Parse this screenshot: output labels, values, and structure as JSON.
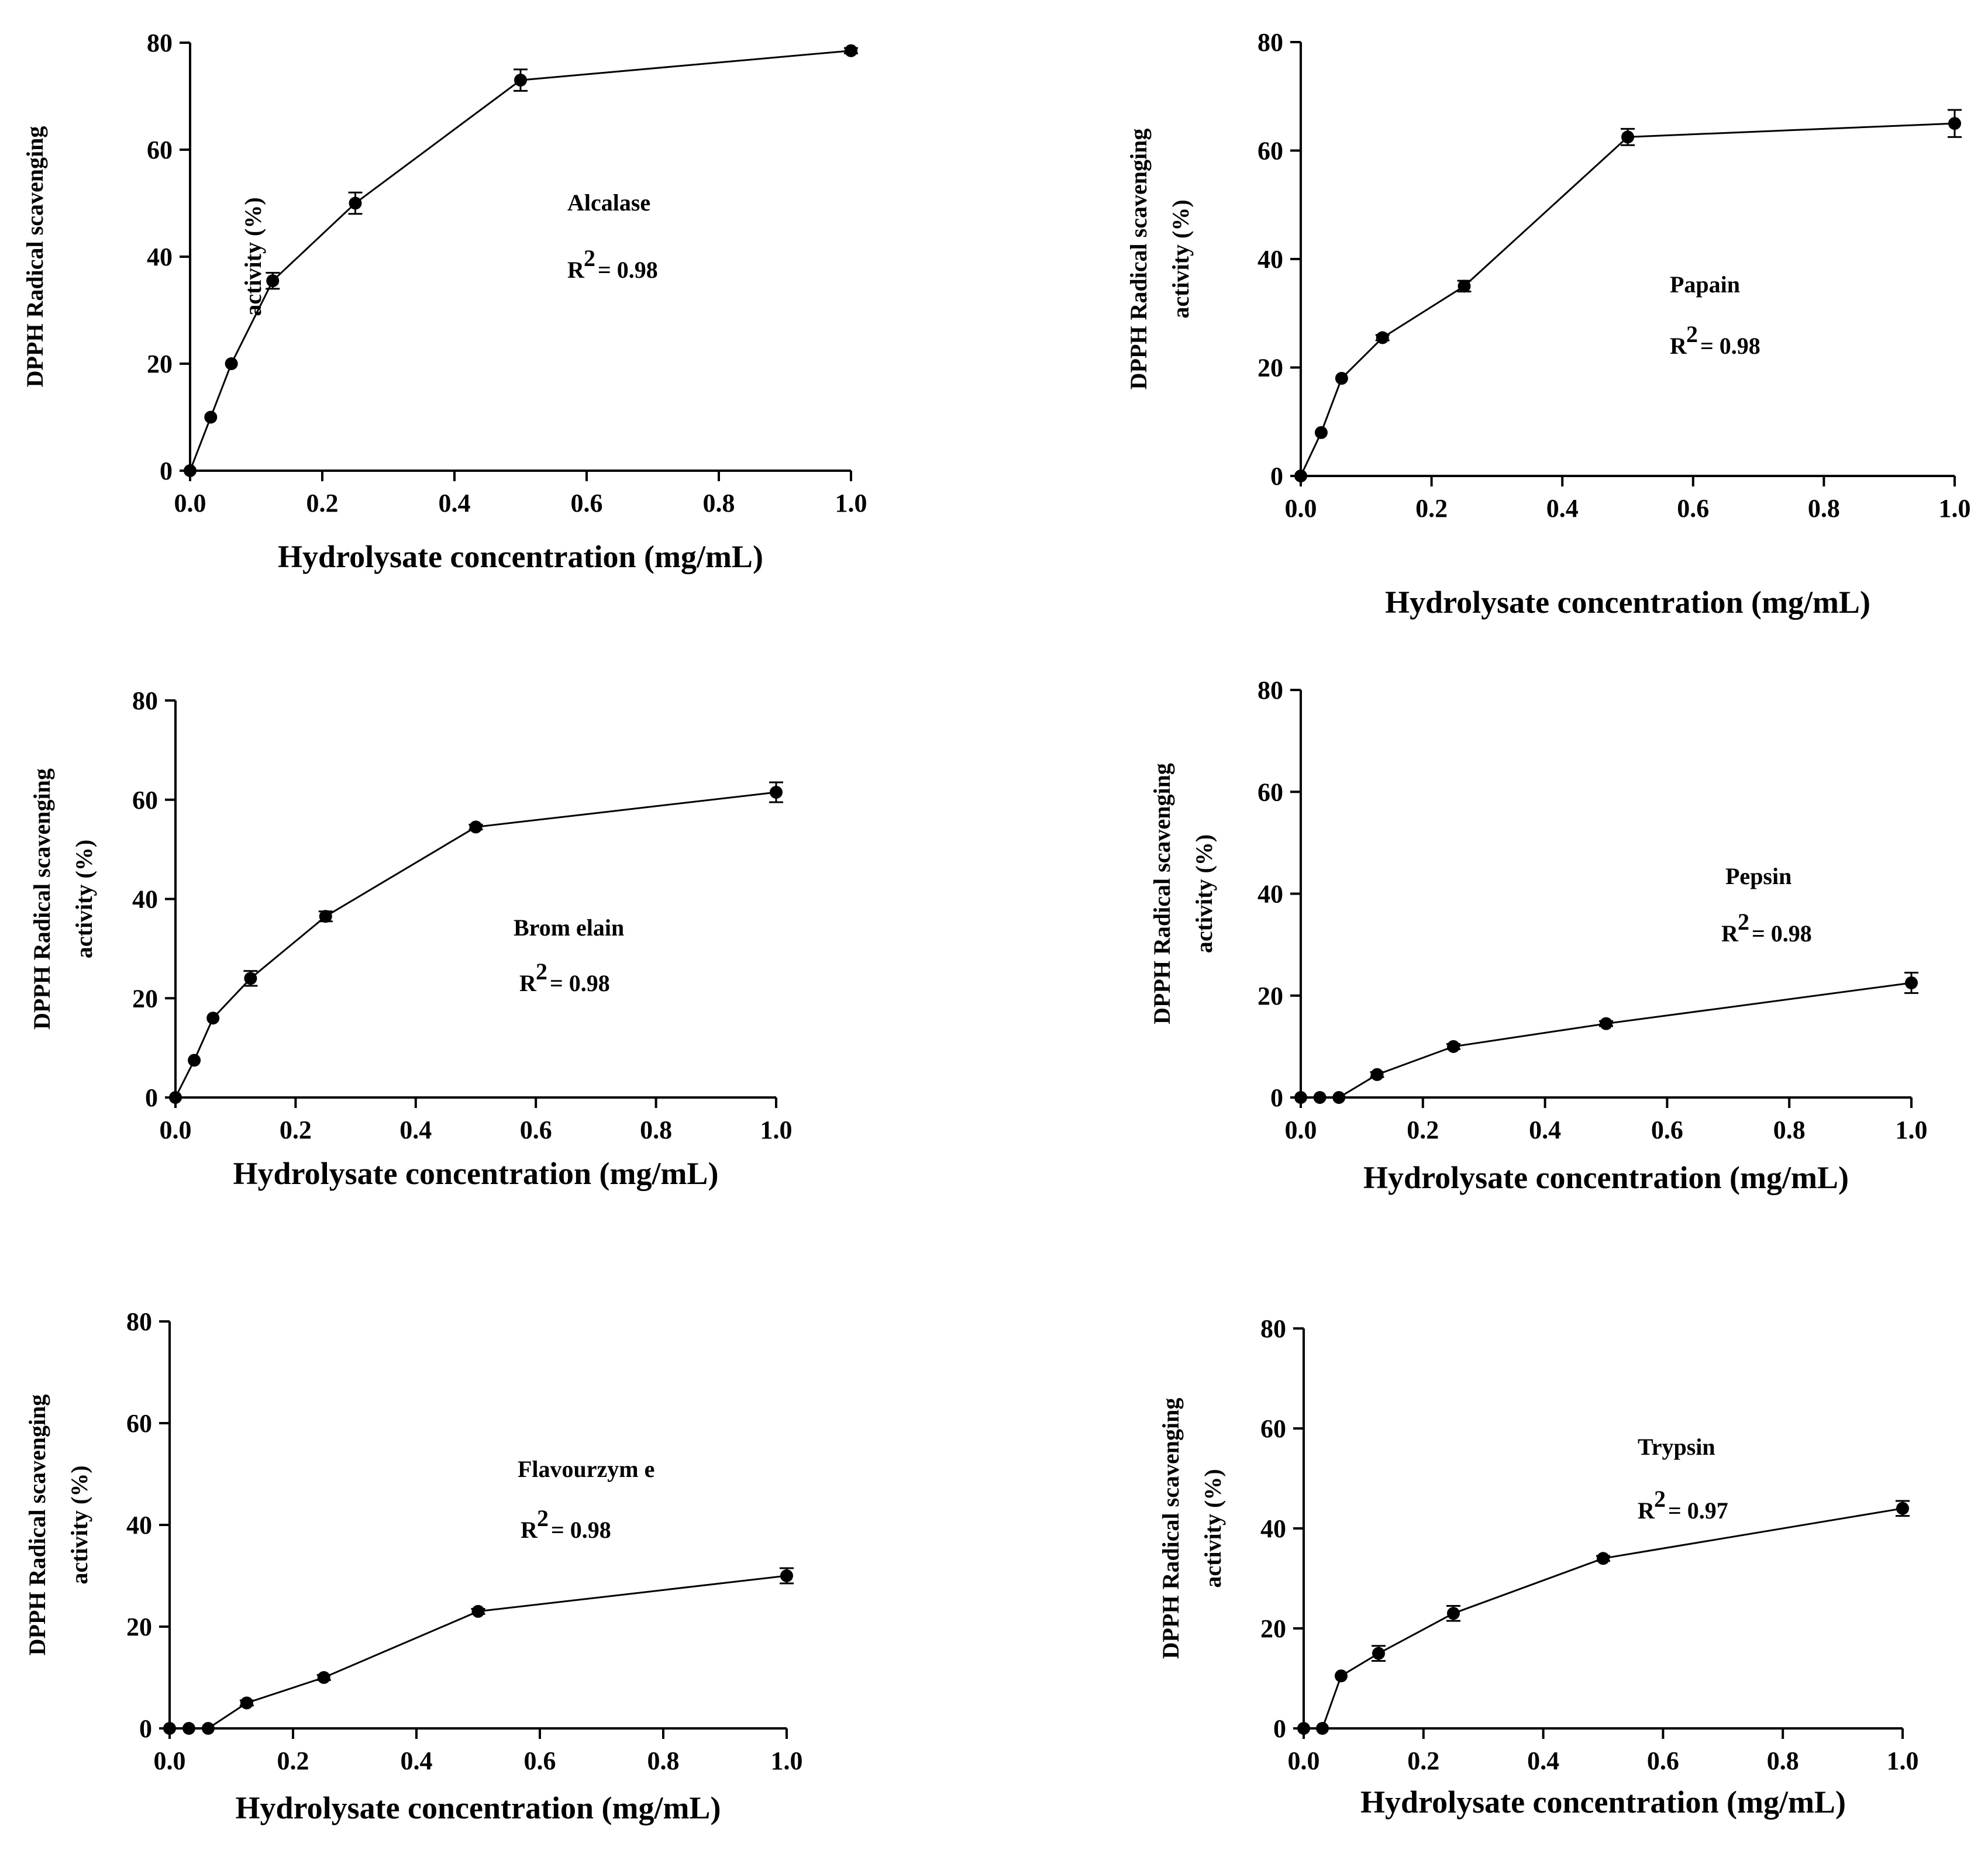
{
  "chart_data": [
    {
      "type": "line",
      "id": "alcalase",
      "title": "",
      "xlabel": "Hydrolysate concentration (mg/mL)",
      "ylabel_line1": "DPPH Radical scavenging",
      "ylabel_line2": "activity (%)",
      "xlim": [
        0,
        1.0
      ],
      "ylim": [
        0,
        80
      ],
      "x_ticks": [
        "0.0",
        "0.2",
        "0.4",
        "0.6",
        "0.8",
        "1.0"
      ],
      "y_ticks": [
        "0",
        "20",
        "40",
        "60",
        "80"
      ],
      "annotation_name": "Alcalase",
      "r2_label": "R",
      "r2_sup": "2",
      "r2_value": "= 0.98",
      "series": [
        {
          "name": "Alcalase",
          "x": [
            0,
            0.03125,
            0.0625,
            0.125,
            0.25,
            0.5,
            1.0
          ],
          "y": [
            0,
            10,
            20,
            35.5,
            50,
            73,
            78.5
          ],
          "err": [
            0,
            0,
            0,
            1.5,
            2,
            2,
            0.5
          ]
        }
      ]
    },
    {
      "type": "line",
      "id": "papain",
      "title": "",
      "xlabel": "Hydrolysate concentration (mg/mL)",
      "ylabel_line1": "DPPH Radical scavenging",
      "ylabel_line2": "activity (%)",
      "xlim": [
        0,
        1.0
      ],
      "ylim": [
        0,
        80
      ],
      "x_ticks": [
        "0.0",
        "0.2",
        "0.4",
        "0.6",
        "0.8",
        "1.0"
      ],
      "y_ticks": [
        "0",
        "20",
        "40",
        "60",
        "80"
      ],
      "annotation_name": "Papain",
      "r2_label": "R",
      "r2_sup": "2",
      "r2_value": "= 0.98",
      "series": [
        {
          "name": "Papain",
          "x": [
            0,
            0.03125,
            0.0625,
            0.125,
            0.25,
            0.5,
            1.0
          ],
          "y": [
            0,
            8,
            18,
            25.5,
            35,
            62.5,
            65
          ],
          "err": [
            0,
            0,
            0,
            0.5,
            1,
            1.5,
            2.5
          ]
        }
      ]
    },
    {
      "type": "line",
      "id": "bromelain",
      "title": "",
      "xlabel": "Hydrolysate concentration (mg/mL)",
      "ylabel_line1": "DPPH Radical scavenging",
      "ylabel_line2": "activity (%)",
      "xlim": [
        0,
        1.0
      ],
      "ylim": [
        0,
        80
      ],
      "x_ticks": [
        "0.0",
        "0.2",
        "0.4",
        "0.6",
        "0.8",
        "1.0"
      ],
      "y_ticks": [
        "0",
        "20",
        "40",
        "60",
        "80"
      ],
      "annotation_name": "Brom elain",
      "r2_label": "R",
      "r2_sup": "2",
      "r2_value": "= 0.98",
      "series": [
        {
          "name": "Bromelain",
          "x": [
            0,
            0.03125,
            0.0625,
            0.125,
            0.25,
            0.5,
            1.0
          ],
          "y": [
            0,
            7.5,
            16,
            24,
            36.5,
            54.5,
            61.5
          ],
          "err": [
            0,
            0,
            0,
            1.5,
            1,
            0.5,
            2
          ]
        }
      ]
    },
    {
      "type": "line",
      "id": "pepsin",
      "title": "",
      "xlabel": "Hydrolysate concentration (mg/mL)",
      "ylabel_line1": "DPPH Radical scavenging",
      "ylabel_line2": "activity (%)",
      "xlim": [
        0,
        1.0
      ],
      "ylim": [
        0,
        80
      ],
      "x_ticks": [
        "0.0",
        "0.2",
        "0.4",
        "0.6",
        "0.8",
        "1.0"
      ],
      "y_ticks": [
        "0",
        "20",
        "40",
        "60",
        "80"
      ],
      "annotation_name": "Pepsin",
      "r2_label": "R",
      "r2_sup": "2",
      "r2_value": "= 0.98",
      "series": [
        {
          "name": "Pepsin",
          "x": [
            0,
            0.03125,
            0.0625,
            0.125,
            0.25,
            0.5,
            1.0
          ],
          "y": [
            0,
            0,
            0,
            4.5,
            10,
            14.5,
            22.5
          ],
          "err": [
            0,
            0,
            0,
            0.5,
            0.5,
            0.5,
            2
          ]
        }
      ]
    },
    {
      "type": "line",
      "id": "flavourzyme",
      "title": "",
      "xlabel": "Hydrolysate concentration (mg/mL)",
      "ylabel_line1": "DPPH Radical scavenging",
      "ylabel_line2": "activity (%)",
      "xlim": [
        0,
        1.0
      ],
      "ylim": [
        0,
        80
      ],
      "x_ticks": [
        "0.0",
        "0.2",
        "0.4",
        "0.6",
        "0.8",
        "1.0"
      ],
      "y_ticks": [
        "0",
        "20",
        "40",
        "60",
        "80"
      ],
      "annotation_name": "Flavourzym e",
      "r2_label": "R",
      "r2_sup": "2",
      "r2_value": "= 0.98",
      "series": [
        {
          "name": "Flavourzyme",
          "x": [
            0,
            0.03125,
            0.0625,
            0.125,
            0.25,
            0.5,
            1.0
          ],
          "y": [
            0,
            0,
            0,
            5,
            10,
            23,
            30
          ],
          "err": [
            0,
            0,
            0,
            0.5,
            0.5,
            0.5,
            1.5
          ]
        }
      ]
    },
    {
      "type": "line",
      "id": "trypsin",
      "title": "",
      "xlabel": "Hydrolysate concentration (mg/mL)",
      "ylabel_line1": "DPPH Radical scavenging",
      "ylabel_line2": "activity (%)",
      "xlim": [
        0,
        1.0
      ],
      "ylim": [
        0,
        80
      ],
      "x_ticks": [
        "0.0",
        "0.2",
        "0.4",
        "0.6",
        "0.8",
        "1.0"
      ],
      "y_ticks": [
        "0",
        "20",
        "40",
        "60",
        "80"
      ],
      "annotation_name": "Trypsin",
      "r2_label": "R",
      "r2_sup": "2",
      "r2_value": "= 0.97",
      "series": [
        {
          "name": "Trypsin",
          "x": [
            0,
            0.03125,
            0.0625,
            0.125,
            0.25,
            0.5,
            1.0
          ],
          "y": [
            0,
            0,
            10.5,
            15,
            23,
            34,
            44
          ],
          "err": [
            0,
            0,
            0,
            1.5,
            1.5,
            0.5,
            1.5
          ]
        }
      ]
    }
  ]
}
